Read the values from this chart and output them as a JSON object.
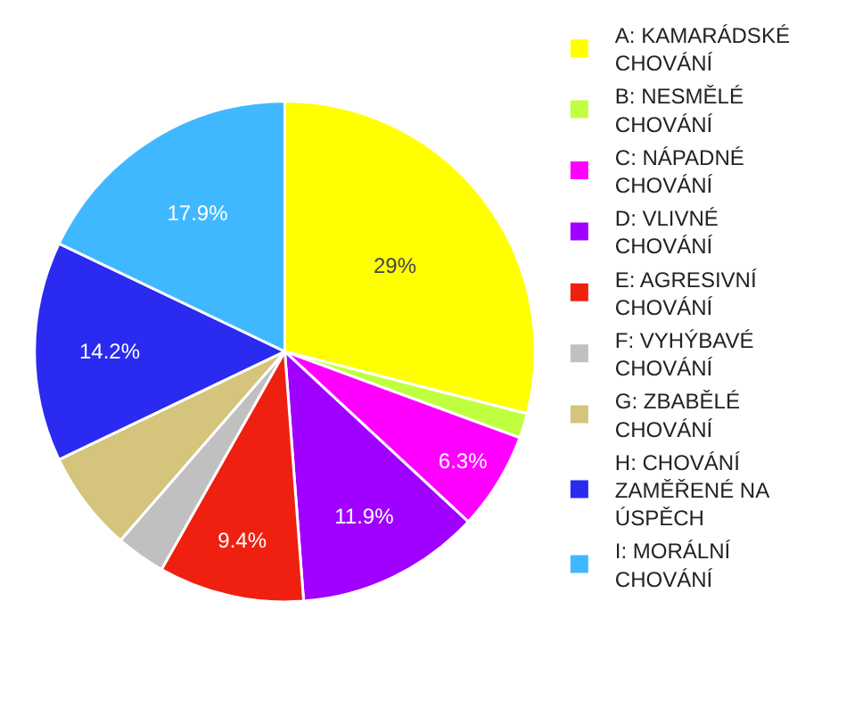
{
  "chart_data": {
    "type": "pie",
    "categories": [
      "A: KAMARÁDSKÉ CHOVÁNÍ",
      "B: NESMĚLÉ CHOVÁNÍ",
      "C: NÁPADNÉ CHOVÁNÍ",
      "D: VLIVNÉ CHOVÁNÍ",
      "E: AGRESIVNÍ CHOVÁNÍ",
      "F: VYHÝBAVÉ CHOVÁNÍ",
      "G: ZBABĚLÉ CHOVÁNÍ",
      "H: CHOVÁNÍ ZAMĚŘENÉ NA ÚSPĚCH",
      "I: MORÁLNÍ CHOVÁNÍ"
    ],
    "values": [
      29,
      1.6,
      6.3,
      11.9,
      9.4,
      3.2,
      6.5,
      14.2,
      17.9
    ],
    "value_labels": [
      "29%",
      null,
      "6.3%",
      "11.9%",
      "9.4%",
      null,
      null,
      "14.2%",
      "17.9%"
    ],
    "colors": [
      "#ffff00",
      "#c0ff40",
      "#ff00ff",
      "#a000ff",
      "#f02010",
      "#c0c0c0",
      "#d4c47c",
      "#2a2af0",
      "#40b8ff"
    ],
    "legend": "right"
  }
}
